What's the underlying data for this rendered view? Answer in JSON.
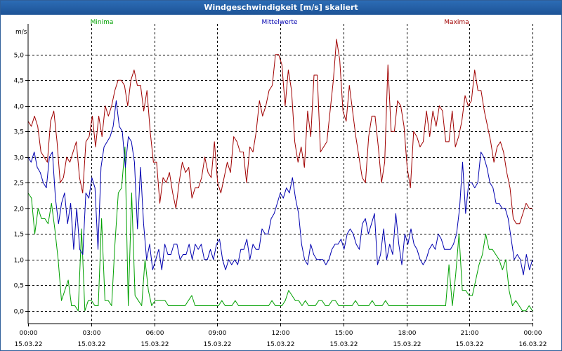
{
  "window": {
    "title": "Windgeschwindigkeit [m/s] skaliert"
  },
  "colors": {
    "min": "#00a000",
    "avg": "#0000b0",
    "max": "#a00000",
    "grid": "#000000"
  },
  "chart_data": {
    "type": "line",
    "title": "Windgeschwindigkeit [m/s] skaliert",
    "ylabel": "m/s",
    "ylim": [
      -0.25,
      5.6
    ],
    "xlim": [
      0,
      24
    ],
    "grid": true,
    "legend_placement": "top",
    "yticks": [
      "0,0",
      "0,5",
      "1,0",
      "1,5",
      "2,0",
      "2,5",
      "3,0",
      "3,5",
      "4,0",
      "4,5",
      "5,0"
    ],
    "xticks": [
      {
        "time": "00:00",
        "date": "15.03.22"
      },
      {
        "time": "03:00",
        "date": "15.03.22"
      },
      {
        "time": "06:00",
        "date": "15.03.22"
      },
      {
        "time": "09:00",
        "date": "15.03.22"
      },
      {
        "time": "12:00",
        "date": "15.03.22"
      },
      {
        "time": "15:00",
        "date": "15.03.22"
      },
      {
        "time": "18:00",
        "date": "15.03.22"
      },
      {
        "time": "21:00",
        "date": "15.03.22"
      },
      {
        "time": "00:00",
        "date": "16.03.22"
      }
    ],
    "series": [
      {
        "name": "Minima",
        "color": "#00a000",
        "values": [
          2.3,
          2.2,
          1.5,
          2.0,
          1.8,
          1.8,
          1.7,
          2.1,
          1.6,
          1.0,
          0.2,
          0.4,
          0.6,
          0.1,
          0.1,
          0.0,
          1.6,
          0.0,
          0.2,
          0.2,
          0.1,
          0.1,
          1.8,
          0.2,
          0.2,
          0.1,
          1.3,
          2.3,
          2.4,
          3.2,
          0.1,
          2.3,
          0.3,
          0.2,
          0.1,
          1.0,
          0.4,
          0.1,
          0.2,
          0.2,
          0.2,
          0.2,
          0.1,
          0.1,
          0.1,
          0.1,
          0.1,
          0.1,
          0.2,
          0.3,
          0.1,
          0.1,
          0.1,
          0.1,
          0.1,
          0.1,
          0.1,
          0.1,
          0.2,
          0.1,
          0.1,
          0.1,
          0.2,
          0.1,
          0.1,
          0.1,
          0.1,
          0.1,
          0.1,
          0.1,
          0.1,
          0.1,
          0.1,
          0.2,
          0.1,
          0.1,
          0.1,
          0.2,
          0.4,
          0.3,
          0.2,
          0.2,
          0.1,
          0.2,
          0.1,
          0.1,
          0.1,
          0.2,
          0.2,
          0.1,
          0.1,
          0.2,
          0.2,
          0.1,
          0.1,
          0.1,
          0.1,
          0.1,
          0.2,
          0.1,
          0.1,
          0.1,
          0.1,
          0.2,
          0.1,
          0.1,
          0.1,
          0.2,
          0.1,
          0.1,
          0.1,
          0.1,
          0.1,
          0.1,
          0.1,
          0.1,
          0.1,
          0.1,
          0.1,
          0.1,
          0.1,
          0.1,
          0.1,
          0.1,
          0.1,
          0.1,
          0.9,
          0.1,
          0.7,
          1.5,
          0.4,
          0.4,
          0.3,
          0.3,
          0.6,
          0.9,
          1.1,
          1.5,
          1.2,
          1.2,
          1.1,
          1.0,
          0.8,
          1.0,
          0.4,
          0.1,
          0.2,
          0.1,
          0.0,
          0.0,
          0.1,
          0.0
        ]
      },
      {
        "name": "Mittelwerte",
        "color": "#0000b0",
        "values": [
          3.0,
          2.9,
          3.1,
          2.8,
          2.7,
          2.5,
          2.4,
          3.0,
          3.1,
          2.2,
          1.7,
          2.1,
          2.3,
          1.7,
          2.1,
          1.2,
          2.0,
          1.2,
          1.1,
          2.3,
          2.2,
          2.6,
          2.4,
          1.2,
          2.8,
          3.2,
          3.3,
          3.4,
          3.6,
          4.1,
          3.6,
          3.5,
          2.8,
          3.4,
          3.3,
          2.9,
          1.6,
          2.8,
          1.7,
          1.0,
          1.3,
          0.8,
          1.0,
          1.2,
          0.8,
          1.3,
          1.1,
          1.1,
          1.3,
          1.3,
          1.0,
          1.1,
          1.1,
          1.3,
          1.0,
          1.3,
          1.2,
          1.3,
          1.0,
          1.0,
          1.2,
          1.0,
          1.3,
          1.4,
          1.0,
          0.8,
          1.0,
          0.9,
          1.0,
          0.9,
          1.2,
          1.2,
          1.4,
          1.0,
          1.3,
          1.2,
          1.2,
          1.6,
          1.5,
          1.5,
          1.8,
          1.9,
          2.1,
          2.3,
          2.2,
          2.4,
          2.3,
          2.6,
          2.2,
          1.9,
          1.3,
          1.0,
          0.9,
          1.3,
          1.1,
          1.0,
          1.0,
          1.0,
          0.9,
          1.0,
          1.2,
          1.3,
          1.3,
          1.4,
          1.2,
          1.5,
          1.6,
          1.5,
          1.3,
          1.2,
          1.7,
          1.8,
          1.5,
          1.7,
          1.9,
          0.9,
          1.1,
          1.6,
          1.0,
          1.3,
          1.1,
          1.9,
          1.3,
          0.9,
          1.5,
          1.3,
          1.6,
          1.3,
          1.2,
          1.0,
          0.9,
          1.0,
          1.2,
          1.3,
          1.2,
          1.5,
          1.4,
          1.2,
          1.2,
          1.2,
          1.3,
          1.5,
          2.0,
          2.9,
          1.9,
          2.5,
          2.5,
          2.4,
          2.5,
          3.1,
          3.0,
          2.8,
          2.5,
          2.4,
          2.1,
          2.1,
          2.0,
          2.0,
          1.8,
          1.4,
          1.0,
          1.1,
          1.0,
          0.7,
          1.1,
          0.8,
          1.0
        ]
      },
      {
        "name": "Maxima",
        "color": "#a00000",
        "values": [
          3.7,
          3.6,
          3.8,
          3.6,
          3.1,
          3.0,
          2.9,
          3.7,
          3.9,
          3.3,
          2.5,
          2.6,
          3.0,
          2.9,
          3.1,
          3.3,
          2.6,
          2.3,
          3.3,
          3.4,
          3.8,
          3.2,
          3.8,
          3.4,
          4.0,
          3.8,
          4.0,
          4.3,
          4.5,
          4.5,
          4.4,
          4.0,
          4.5,
          4.7,
          4.4,
          4.4,
          3.9,
          4.3,
          3.5,
          2.9,
          2.9,
          2.1,
          2.6,
          2.5,
          2.7,
          2.3,
          2.0,
          2.5,
          2.9,
          2.7,
          2.8,
          2.2,
          2.4,
          2.4,
          2.6,
          3.0,
          2.7,
          2.6,
          3.3,
          2.5,
          2.3,
          2.6,
          2.9,
          2.7,
          3.4,
          3.3,
          3.1,
          3.1,
          2.5,
          3.2,
          3.1,
          3.5,
          4.1,
          3.8,
          4.0,
          4.3,
          4.4,
          5.0,
          5.0,
          4.8,
          4.0,
          4.7,
          4.3,
          3.3,
          2.9,
          3.2,
          2.8,
          3.9,
          3.4,
          4.6,
          4.6,
          3.1,
          3.2,
          3.3,
          3.9,
          4.5,
          5.3,
          4.9,
          3.9,
          3.7,
          4.4,
          3.9,
          3.4,
          3.0,
          2.6,
          2.5,
          3.4,
          3.8,
          3.8,
          3.2,
          2.5,
          2.9,
          4.8,
          3.5,
          3.5,
          4.1,
          4.0,
          3.6,
          2.8,
          2.4,
          3.5,
          3.4,
          3.2,
          3.3,
          3.9,
          3.4,
          3.9,
          3.6,
          4.0,
          3.9,
          3.3,
          3.3,
          3.9,
          3.2,
          3.4,
          3.7,
          4.2,
          4.0,
          4.1,
          4.7,
          4.3,
          4.3,
          3.9,
          3.6,
          3.3,
          2.9,
          3.2,
          3.3,
          3.1,
          2.7,
          2.4,
          1.8,
          1.7,
          1.7,
          1.9,
          2.1,
          2.0,
          2.0
        ]
      }
    ]
  }
}
